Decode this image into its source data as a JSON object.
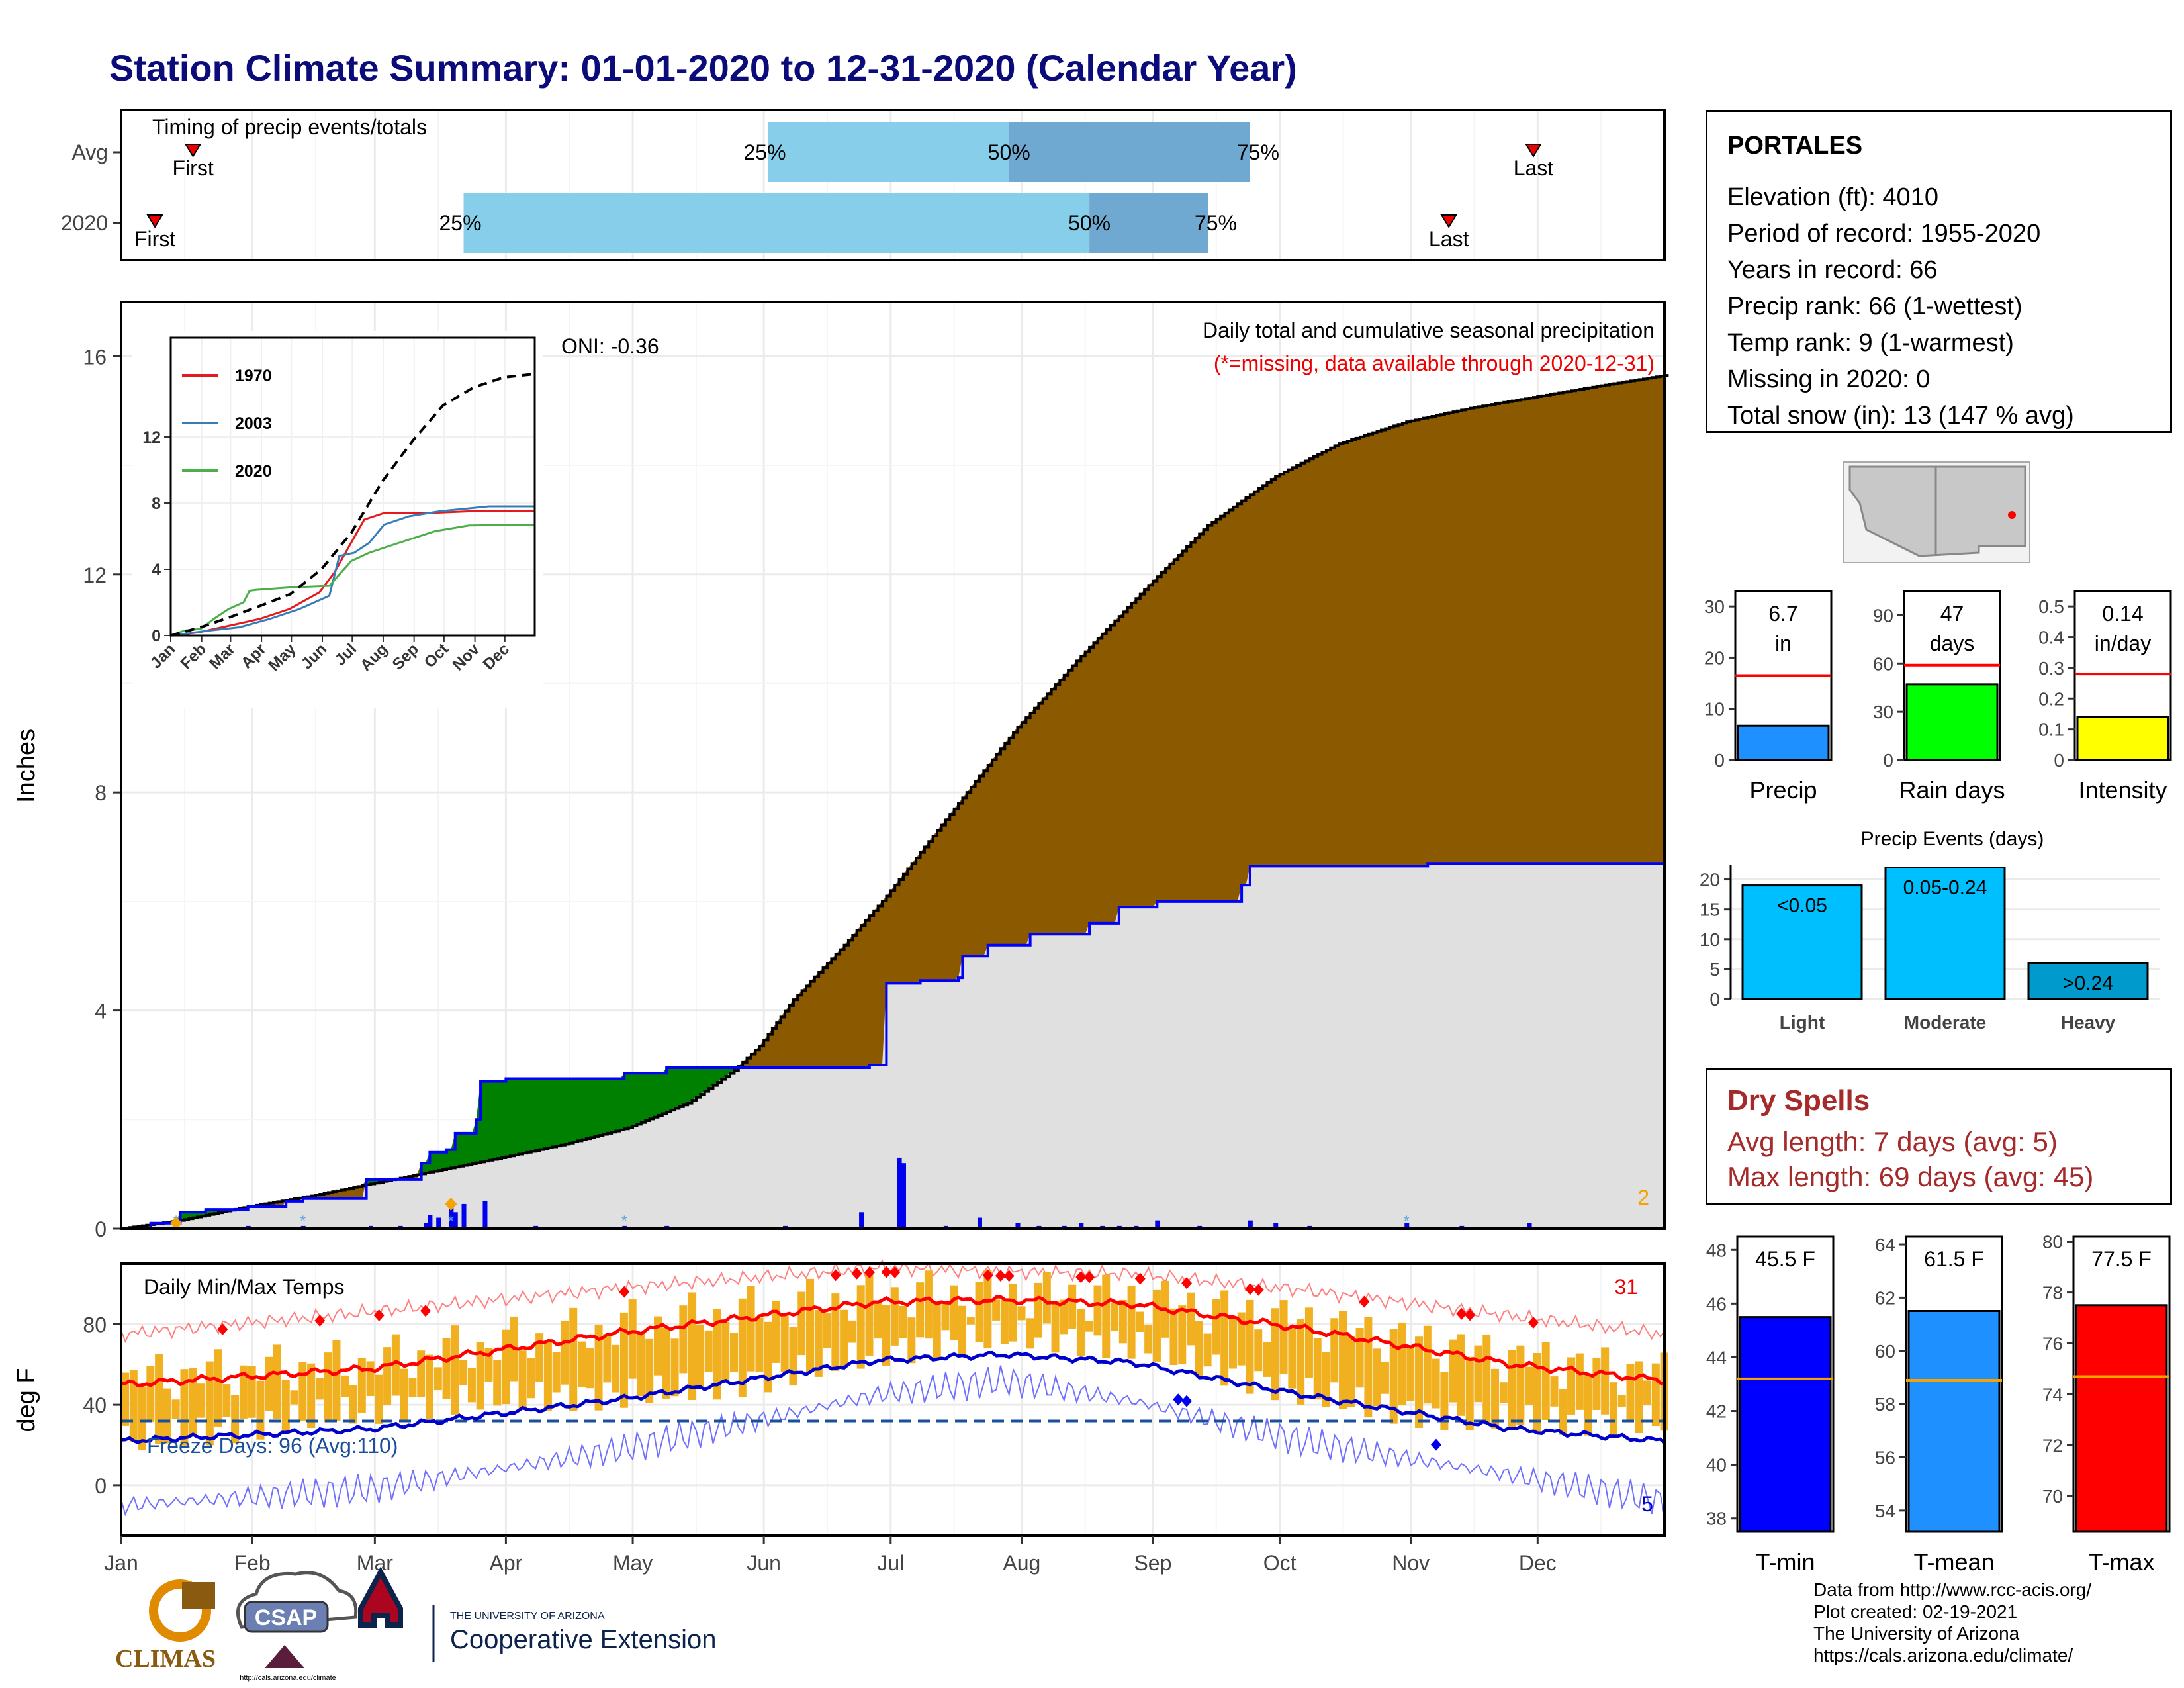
{
  "title": "Station Climate Summary: 01-01-2020 to 12-31-2020 (Calendar Year)",
  "timing_panel": {
    "label": "Timing of precip events/totals",
    "rows": [
      "Avg",
      "2020"
    ],
    "avg": {
      "first_doy": 18,
      "q25_doy": 154,
      "q50_doy": 211,
      "q75_doy": 268,
      "last_doy": 335
    },
    "y2020": {
      "first_doy": 9,
      "q25_doy": 82,
      "q50_doy": 230,
      "q75_doy": 258,
      "last_doy": 315
    },
    "marker_labels": {
      "first": "First",
      "last": "Last",
      "q25": "25%",
      "q50": "50%",
      "q75": "75%"
    }
  },
  "station": {
    "name": "PORTALES",
    "lines": [
      "Elevation (ft): 4010",
      "Period of record: 1955-2020",
      "Years in record: 66",
      "Precip rank: 66 (1-wettest)",
      "Temp rank: 9 (1-warmest)",
      "Missing in 2020: 0",
      "Total snow (in): 13 (147 % avg)"
    ]
  },
  "dry_spells": {
    "title": "Dry Spells",
    "lines": [
      "Avg length: 7 days (avg: 5)",
      "Max length: 69 days (avg: 45)"
    ]
  },
  "credits": [
    "Data from http://www.rcc-acis.org/",
    "Plot created: 02-19-2021",
    "The University of Arizona",
    "https://cals.arizona.edu/climate/"
  ],
  "logos": {
    "climas": "CLIMAS",
    "csap": "CSAP",
    "csap_url": "http://cals.arizona.edu/climate",
    "ua_small": "THE UNIVERSITY OF ARIZONA",
    "ua_big": "Cooperative Extension"
  },
  "colors": {
    "title": "#0b0b7a",
    "normal_area": "#e0e0e0",
    "dry_area": "#8b5a00",
    "wet_area": "#008000",
    "observed_line": "#0000ff",
    "light_blue": "#87ceeb",
    "mid_blue": "#6fa8d0",
    "temp_bar": "#f0b020",
    "tmax": "#ff0000",
    "tmin": "#0000cc"
  },
  "chart_data": [
    {
      "type": "area",
      "name": "precip",
      "title": "Daily total and cumulative seasonal precipitation",
      "subtitle": "(*=missing, data available through 2020-12-31)",
      "annotation": "ONI: -0.36",
      "corner_count": "2",
      "ylabel": "Inches",
      "ylim": [
        0,
        17
      ],
      "yticks": [
        0,
        4,
        8,
        12,
        16
      ],
      "xlabels": [
        "Jan",
        "Feb",
        "Mar",
        "Apr",
        "May",
        "Jun",
        "Jul",
        "Aug",
        "Sep",
        "Oct",
        "Nov",
        "Dec"
      ],
      "normal_cumulative": {
        "doy": [
          1,
          15,
          31,
          46,
          60,
          75,
          91,
          106,
          121,
          135,
          146,
          152,
          160,
          172,
          182,
          196,
          213,
          228,
          244,
          258,
          274,
          289,
          305,
          320,
          335,
          350,
          366
        ],
        "value": [
          0.0,
          0.15,
          0.4,
          0.6,
          0.82,
          1.05,
          1.3,
          1.55,
          1.85,
          2.3,
          2.9,
          3.35,
          4.2,
          5.2,
          6.1,
          7.5,
          9.2,
          10.5,
          11.8,
          12.9,
          13.8,
          14.4,
          14.8,
          15.05,
          15.25,
          15.45,
          15.65
        ]
      },
      "observed_cumulative": {
        "doy": [
          1,
          8,
          15,
          21,
          31,
          40,
          44,
          59,
          66,
          72,
          74,
          78,
          80,
          85,
          86,
          90,
          92,
          120,
          130,
          160,
          170,
          178,
          182,
          190,
          199,
          200,
          206,
          216,
          230,
          237,
          246,
          259,
          266,
          268,
          290,
          310,
          320,
          366
        ],
        "value": [
          0.0,
          0.1,
          0.3,
          0.35,
          0.4,
          0.5,
          0.55,
          0.9,
          0.9,
          1.2,
          1.4,
          1.45,
          1.75,
          2.0,
          2.7,
          2.7,
          2.75,
          2.85,
          2.95,
          2.95,
          2.95,
          3.0,
          4.5,
          4.55,
          4.6,
          5.0,
          5.2,
          5.4,
          5.6,
          5.9,
          6.0,
          6.0,
          6.3,
          6.65,
          6.65,
          6.7,
          6.7,
          6.7
        ]
      },
      "daily_bars": {
        "doy": [
          14,
          31,
          44,
          60,
          67,
          73,
          74,
          76,
          79,
          80,
          82,
          87,
          99,
          120,
          130,
          158,
          176,
          185,
          186,
          196,
          204,
          213,
          218,
          224,
          228,
          233,
          237,
          241,
          246,
          256,
          268,
          274,
          282,
          305,
          318,
          334
        ],
        "value": [
          0.1,
          0.05,
          0.05,
          0.05,
          0.05,
          0.1,
          0.25,
          0.2,
          0.4,
          0.3,
          0.45,
          0.5,
          0.05,
          0.05,
          0.05,
          0.05,
          0.3,
          1.3,
          1.2,
          0.05,
          0.2,
          0.1,
          0.05,
          0.05,
          0.1,
          0.05,
          0.05,
          0.05,
          0.15,
          0.05,
          0.15,
          0.1,
          0.05,
          0.1,
          0.05,
          0.1
        ]
      },
      "snow_marks_doy": [
        14,
        44,
        79,
        120,
        305
      ]
    },
    {
      "type": "line",
      "name": "inset",
      "ylim": [
        0,
        18
      ],
      "yticks": [
        0,
        4,
        8,
        12
      ],
      "xlabels": [
        "Jan",
        "Feb",
        "Mar",
        "Apr",
        "May",
        "Jun",
        "Jul",
        "Aug",
        "Sep",
        "Oct",
        "Nov",
        "Dec"
      ],
      "series": [
        {
          "name": "1970",
          "color": "#e41a1c",
          "doy": [
            1,
            30,
            60,
            90,
            120,
            150,
            165,
            180,
            195,
            215,
            230,
            260,
            300,
            366
          ],
          "value": [
            0,
            0.2,
            0.6,
            1.0,
            1.6,
            2.6,
            3.8,
            5.4,
            7.0,
            7.4,
            7.4,
            7.4,
            7.5,
            7.5
          ]
        },
        {
          "name": "2003",
          "color": "#377eb8",
          "doy": [
            1,
            40,
            70,
            100,
            130,
            160,
            170,
            185,
            200,
            215,
            240,
            270,
            320,
            366
          ],
          "value": [
            0,
            0.3,
            0.5,
            1.0,
            1.6,
            2.4,
            4.8,
            5.0,
            5.6,
            6.7,
            7.2,
            7.5,
            7.8,
            7.8
          ]
        },
        {
          "name": "2020",
          "color": "#4daf4a",
          "doy": [
            1,
            15,
            31,
            44,
            59,
            74,
            80,
            86,
            120,
            160,
            182,
            200,
            230,
            266,
            300,
            366
          ],
          "value": [
            0,
            0.3,
            0.4,
            1.0,
            1.6,
            2.0,
            2.7,
            2.75,
            2.9,
            3.0,
            4.5,
            5.0,
            5.6,
            6.3,
            6.65,
            6.7
          ]
        },
        {
          "name": "avg (dashed)",
          "color": "#000000",
          "doy": [
            1,
            31,
            60,
            91,
            121,
            152,
            182,
            213,
            244,
            274,
            305,
            335,
            366
          ],
          "value": [
            0,
            0.5,
            1.1,
            1.8,
            2.5,
            4.0,
            6.2,
            9.3,
            11.8,
            13.9,
            15.0,
            15.6,
            15.8
          ]
        }
      ]
    },
    {
      "type": "bar",
      "name": "temps",
      "title": "Daily Min/Max Temps",
      "ylabel": "deg F",
      "ylim": [
        -25,
        110
      ],
      "yticks": [
        0,
        40,
        80
      ],
      "freeze_label": "Freeze Days: 96 (Avg:110)",
      "freeze_line": 32,
      "record_high_count": "31",
      "record_low_count": "5",
      "tmax_normal": {
        "doy": [
          1,
          60,
          120,
          180,
          210,
          240,
          280,
          330,
          366
        ],
        "value": [
          50,
          58,
          76,
          91,
          92,
          90,
          78,
          60,
          52
        ]
      },
      "tmin_normal": {
        "doy": [
          1,
          60,
          120,
          180,
          210,
          240,
          280,
          330,
          366
        ],
        "value": [
          22,
          28,
          43,
          62,
          65,
          61,
          45,
          28,
          22
        ]
      },
      "tmax_record": {
        "doy": [
          1,
          60,
          120,
          180,
          210,
          240,
          280,
          330,
          366
        ],
        "value": [
          75,
          86,
          98,
          108,
          106,
          105,
          97,
          84,
          75
        ]
      },
      "tmin_record": {
        "doy": [
          1,
          60,
          120,
          180,
          210,
          240,
          280,
          330,
          366
        ],
        "value": [
          -10,
          -2,
          18,
          45,
          52,
          42,
          22,
          5,
          -8
        ]
      }
    },
    {
      "type": "bar",
      "name": "summary_bars",
      "panels": [
        {
          "category": "Precip",
          "label": "6.7 in",
          "value": 6.7,
          "avg": 16.5,
          "ylim": [
            0,
            33
          ],
          "yticks": [
            0,
            10,
            20,
            30
          ],
          "color": "#1e90ff"
        },
        {
          "category": "Rain days",
          "label": "47 days",
          "value": 47,
          "avg": 59,
          "ylim": [
            0,
            105
          ],
          "yticks": [
            0,
            30,
            60,
            90
          ],
          "color": "#00ff00"
        },
        {
          "category": "Intensity",
          "label": "0.14 in/day",
          "value": 0.14,
          "avg": 0.28,
          "ylim": [
            0,
            0.55
          ],
          "yticks": [
            0.0,
            0.1,
            0.2,
            0.3,
            0.4,
            0.5
          ],
          "color": "#ffff00"
        }
      ]
    },
    {
      "type": "bar",
      "name": "precip_events",
      "title": "Precip Events (days)",
      "categories": [
        "Light",
        "Moderate",
        "Heavy"
      ],
      "labels": [
        "<0.05",
        "0.05-0.24",
        ">0.24"
      ],
      "values": [
        19,
        22,
        6
      ],
      "ylim": [
        0,
        22.5
      ],
      "yticks": [
        0,
        5,
        10,
        15,
        20
      ],
      "colors": [
        "#00bfff",
        "#00bfff",
        "#009acd"
      ]
    },
    {
      "type": "bar",
      "name": "temp_summary",
      "panels": [
        {
          "category": "T-min",
          "label": "45.5 F",
          "value": 45.5,
          "avg": 43.2,
          "ylim": [
            37.5,
            48.5
          ],
          "yticks": [
            38,
            40,
            42,
            44,
            46,
            48
          ],
          "color": "#0000ff"
        },
        {
          "category": "T-mean",
          "label": "61.5 F",
          "value": 61.5,
          "avg": 58.9,
          "ylim": [
            53.2,
            64.3
          ],
          "yticks": [
            54,
            56,
            58,
            60,
            62,
            64
          ],
          "color": "#1e90ff"
        },
        {
          "category": "T-max",
          "label": "77.5 F",
          "value": 77.5,
          "avg": 74.7,
          "ylim": [
            68.6,
            80.2
          ],
          "yticks": [
            70,
            72,
            74,
            76,
            78,
            80
          ],
          "color": "#ff0000"
        }
      ]
    }
  ]
}
